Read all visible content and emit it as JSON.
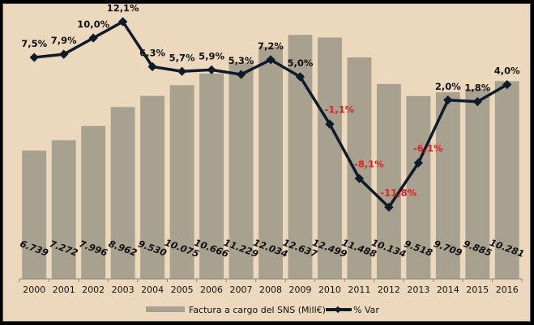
{
  "chart_data": {
    "type": "bar+line",
    "title": "",
    "categories": [
      "2000",
      "2001",
      "2002",
      "2003",
      "2004",
      "2005",
      "2006",
      "2007",
      "2008",
      "2009",
      "2010",
      "2011",
      "2012",
      "2013",
      "2014",
      "2015",
      "2016"
    ],
    "series": [
      {
        "name": "Factura a cargo del SNS (Mill€)",
        "type": "bar",
        "color": "#a9a190",
        "values": [
          6739,
          7272,
          7996,
          8962,
          9530,
          10075,
          10666,
          11229,
          12034,
          12637,
          12499,
          11488,
          10134,
          9518,
          9709,
          9885,
          10281
        ],
        "labels": [
          "6.739",
          "7.272",
          "7.996",
          "8.962",
          "9.530",
          "10.075",
          "10.666",
          "11.229",
          "12.034",
          "12.637",
          "12.499",
          "11.488",
          "10.134",
          "9.518",
          "9.709",
          "9.885",
          "10.281"
        ]
      },
      {
        "name": "% Var",
        "type": "line",
        "color": "#0f1a2a",
        "values": [
          7.5,
          7.9,
          10.0,
          12.1,
          6.3,
          5.7,
          5.9,
          5.3,
          7.2,
          5.0,
          -1.1,
          -8.1,
          -11.8,
          -6.1,
          2.0,
          1.8,
          4.0
        ],
        "labels": [
          "7,5%",
          "7,9%",
          "10,0%",
          "12,1%",
          "6,3%",
          "5,7%",
          "5,9%",
          "5,3%",
          "7,2%",
          "5,0%",
          "-1,1%",
          "-8,1%",
          "-11,8%",
          "-6,1%",
          "2,0%",
          "1,8%",
          "4,0%"
        ]
      }
    ],
    "positive_label_color": "#111111",
    "negative_label_color": "#e02020",
    "legend": {
      "position": "bottom",
      "entries": [
        "Factura a cargo del SNS (Mill€)",
        "% Var"
      ]
    },
    "grid": false
  }
}
